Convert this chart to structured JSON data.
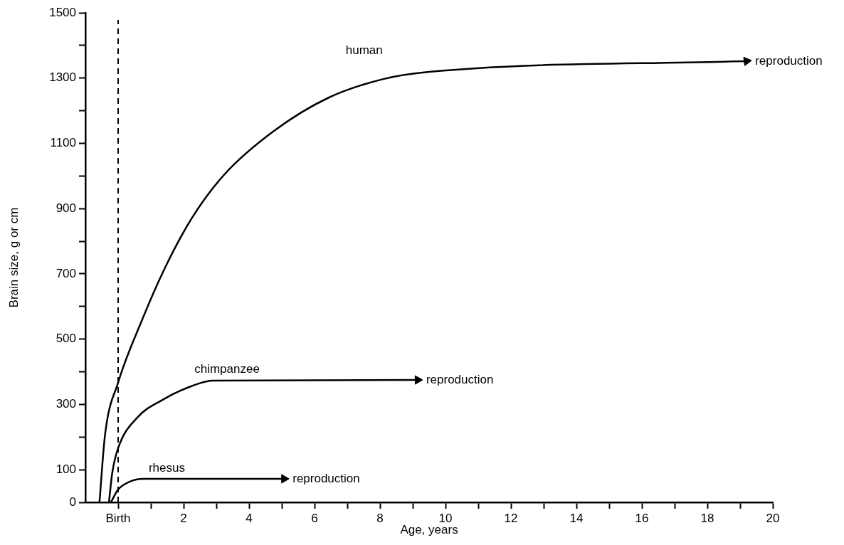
{
  "chart_data": {
    "type": "line",
    "xlabel": "Age, years",
    "ylabel": "Brain size, g or cm",
    "xlim": [
      -1,
      20
    ],
    "xticks": [
      {
        "value": 0,
        "label": "Birth"
      },
      {
        "value": 1,
        "label": null
      },
      2,
      {
        "value": 3,
        "label": null
      },
      4,
      {
        "value": 5,
        "label": null
      },
      6,
      {
        "value": 7,
        "label": null
      },
      8,
      {
        "value": 9,
        "label": null
      },
      10,
      {
        "value": 11,
        "label": null
      },
      12,
      {
        "value": 13,
        "label": null
      },
      14,
      {
        "value": 15,
        "label": null
      },
      16,
      {
        "value": 17,
        "label": null
      },
      18,
      {
        "value": 19,
        "label": null
      },
      20
    ],
    "ylim": [
      0,
      1500
    ],
    "yticks": [
      0,
      100,
      {
        "value": 200,
        "label": null
      },
      300,
      {
        "value": 400,
        "label": null
      },
      500,
      {
        "value": 600,
        "label": null
      },
      700,
      {
        "value": 800,
        "label": null
      },
      900,
      {
        "value": 1000,
        "label": null
      },
      1100,
      {
        "value": 1200,
        "label": null
      },
      1300,
      {
        "value": 1400,
        "label": null
      },
      1500
    ],
    "grid": false,
    "legend": false,
    "marker": "none",
    "line_style": "solid",
    "ref_lines": [
      {
        "axis": "x",
        "value": 0,
        "label": null,
        "color": "#000000",
        "line_style": "dashed"
      }
    ],
    "series": [
      {
        "name": "human",
        "color": "#000000",
        "x": [
          -0.57,
          -0.4,
          0,
          0.74,
          1.4,
          2.24,
          3.24,
          4.76,
          6.43,
          8.1,
          9.5,
          18.8,
          19.2
        ],
        "values": [
          0,
          207,
          367,
          561,
          712,
          869,
          1004,
          1138,
          1240,
          1297,
          1319,
          1351,
          1352
        ]
      },
      {
        "name": "chimpanzee",
        "color": "#000000",
        "x": [
          -0.28,
          -0.18,
          0,
          0.57,
          1.41,
          2.24,
          2.87,
          9.15
        ],
        "values": [
          0,
          90,
          166,
          258,
          317,
          356,
          373,
          375
        ]
      },
      {
        "name": "rhesus",
        "color": "#000000",
        "x": [
          -0.22,
          0,
          0.4,
          0.78,
          5.07
        ],
        "values": [
          0,
          39,
          65,
          72,
          72
        ]
      }
    ],
    "annotations": [
      {
        "text": "reproduction",
        "x": 19.2,
        "y": 1352
      },
      {
        "text": "reproduction",
        "x": 9.15,
        "y": 375
      },
      {
        "text": "reproduction",
        "x": 5.07,
        "y": 72
      }
    ]
  }
}
